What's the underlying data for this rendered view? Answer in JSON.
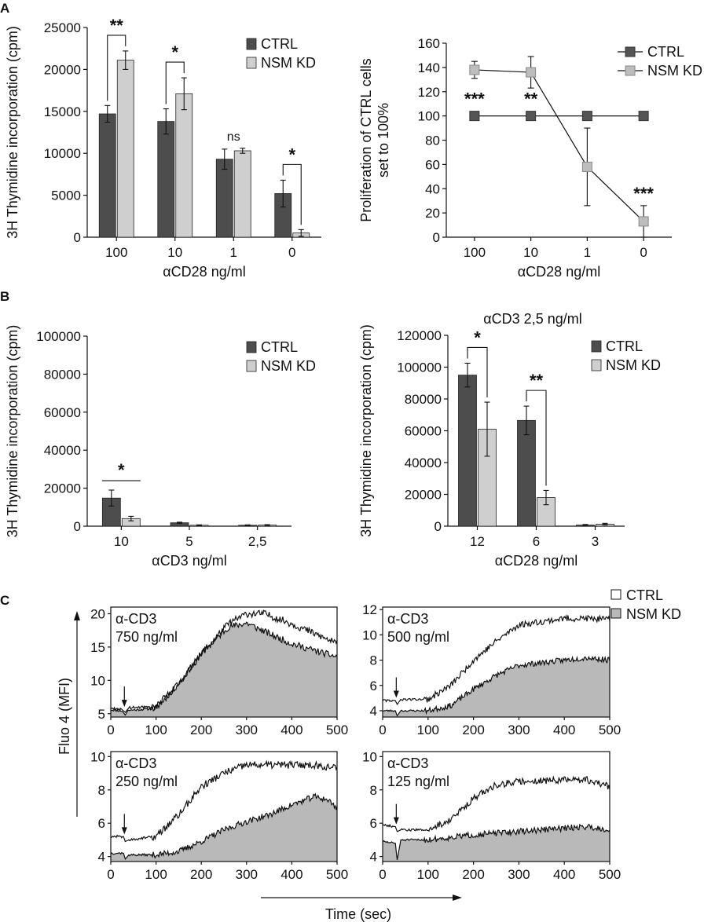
{
  "panel_labels": {
    "a": "A",
    "b": "B",
    "c": "C"
  },
  "colors": {
    "ctrl_bar": "#4d4d4d",
    "nsm_bar": "#cfcfcf",
    "ctrl_marker": "#555555",
    "nsm_marker": "#bdbdbd",
    "nsm_fill": "#b9b9b9",
    "trace": "#111111"
  },
  "chart_data": [
    {
      "id": "A1",
      "type": "bar",
      "categories": [
        "100",
        "10",
        "1",
        "0"
      ],
      "series": [
        {
          "name": "CTRL",
          "values": [
            14700,
            13800,
            9300,
            5200
          ],
          "errors": [
            1000,
            1500,
            1200,
            1600
          ]
        },
        {
          "name": "NSM KD",
          "values": [
            21100,
            17100,
            10300,
            500
          ],
          "errors": [
            1100,
            1900,
            300,
            400
          ]
        }
      ],
      "xlabel": "αCD28 ng/ml",
      "ylabel": "3H Thymidine incorporation (cpm)",
      "ylim": [
        0,
        25000
      ],
      "yticks": [
        "0",
        "5000",
        "10000",
        "15000",
        "20000",
        "25000"
      ],
      "legend": [
        "CTRL",
        "NSM KD"
      ],
      "annotations": [
        {
          "category": "100",
          "text": "**",
          "type": "bracket"
        },
        {
          "category": "10",
          "text": "*",
          "type": "bracket"
        },
        {
          "category": "1",
          "text": "ns",
          "type": "label"
        },
        {
          "category": "0",
          "text": "*",
          "type": "bracket"
        }
      ]
    },
    {
      "id": "A2",
      "type": "line",
      "categories": [
        "100",
        "10",
        "1",
        "0"
      ],
      "series": [
        {
          "name": "CTRL",
          "values": [
            100,
            100,
            100,
            100
          ],
          "errors": [
            0,
            0,
            0,
            0
          ]
        },
        {
          "name": "NSM KD",
          "values": [
            138,
            136,
            58,
            13
          ],
          "errors": [
            7,
            13,
            32,
            13
          ]
        }
      ],
      "xlabel": "αCD28 ng/ml",
      "ylabel": "Proliferation of CTRL cells set to 100%",
      "ylabel_lines": [
        "Proliferation of CTRL cells",
        "set to 100%"
      ],
      "ylim": [
        0,
        160
      ],
      "yticks": [
        "0",
        "20",
        "40",
        "60",
        "80",
        "100",
        "120",
        "140",
        "160"
      ],
      "legend": [
        "CTRL",
        "NSM KD"
      ],
      "annotations": [
        {
          "category": "100",
          "text": "***"
        },
        {
          "category": "10",
          "text": "**"
        },
        {
          "category": "0",
          "text": "***"
        }
      ]
    },
    {
      "id": "B1",
      "type": "bar",
      "categories": [
        "10",
        "5",
        "2,5"
      ],
      "series": [
        {
          "name": "CTRL",
          "values": [
            14800,
            1800,
            500
          ],
          "errors": [
            4200,
            300,
            200
          ]
        },
        {
          "name": "NSM KD",
          "values": [
            4000,
            500,
            600
          ],
          "errors": [
            1200,
            200,
            200
          ]
        }
      ],
      "xlabel": "αCD3 ng/ml",
      "ylabel": "3H Thymidine incorporation (cpm)",
      "ylim": [
        0,
        100000
      ],
      "yticks": [
        "0",
        "20000",
        "40000",
        "60000",
        "80000",
        "100000"
      ],
      "legend": [
        "CTRL",
        "NSM KD"
      ],
      "annotations": [
        {
          "category": "10",
          "text": "*",
          "type": "line"
        }
      ]
    },
    {
      "id": "B2",
      "type": "bar",
      "title": "αCD3 2,5 ng/ml",
      "categories": [
        "12",
        "6",
        "3"
      ],
      "series": [
        {
          "name": "CTRL",
          "values": [
            95000,
            66500,
            700
          ],
          "errors": [
            7500,
            9000,
            400
          ]
        },
        {
          "name": "NSM KD",
          "values": [
            61000,
            18000,
            1300
          ],
          "errors": [
            17000,
            4500,
            500
          ]
        }
      ],
      "xlabel": "αCD28 ng/ml",
      "ylabel": "3H Thymidine incorporation (cpm)",
      "ylim": [
        0,
        120000
      ],
      "yticks": [
        "0",
        "20000",
        "40000",
        "60000",
        "80000",
        "100000",
        "120000"
      ],
      "legend": [
        "CTRL",
        "NSM KD"
      ],
      "annotations": [
        {
          "category": "12",
          "text": "*",
          "type": "bracket"
        },
        {
          "category": "6",
          "text": "**",
          "type": "bracket"
        }
      ]
    },
    {
      "id": "C1",
      "type": "area",
      "label_lines": [
        "α-CD3",
        "750 ng/ml"
      ],
      "xlim": [
        0,
        500
      ],
      "ylim": [
        4.5,
        21
      ],
      "xticks": [
        "0",
        "100",
        "200",
        "300",
        "400",
        "500"
      ],
      "yticks": [
        "5",
        "10",
        "15",
        "20"
      ],
      "stimulus_time": 30,
      "series": [
        {
          "name": "CTRL",
          "fill": false,
          "knots": [
            [
              0,
              5.8
            ],
            [
              25,
              5.6
            ],
            [
              32,
              5.2
            ],
            [
              40,
              5.9
            ],
            [
              100,
              6.0
            ],
            [
              150,
              9.5
            ],
            [
              200,
              14.0
            ],
            [
              260,
              18.5
            ],
            [
              300,
              20.0
            ],
            [
              340,
              20.0
            ],
            [
              400,
              18.5
            ],
            [
              450,
              17.0
            ],
            [
              500,
              15.5
            ]
          ],
          "noise": 0.55
        },
        {
          "name": "NSM KD",
          "fill": true,
          "knots": [
            [
              0,
              5.6
            ],
            [
              25,
              5.4
            ],
            [
              32,
              4.8
            ],
            [
              38,
              5.5
            ],
            [
              100,
              5.8
            ],
            [
              150,
              9.5
            ],
            [
              200,
              14.0
            ],
            [
              260,
              18.0
            ],
            [
              300,
              18.6
            ],
            [
              350,
              17.0
            ],
            [
              400,
              15.5
            ],
            [
              450,
              14.5
            ],
            [
              500,
              13.5
            ]
          ],
          "noise": 0.5
        }
      ]
    },
    {
      "id": "C2",
      "type": "area",
      "label_lines": [
        "α-CD3",
        "500 ng/ml"
      ],
      "xlim": [
        0,
        500
      ],
      "ylim": [
        3.5,
        12.2
      ],
      "xticks": [
        "0",
        "100",
        "200",
        "300",
        "400",
        "500"
      ],
      "yticks": [
        "4",
        "6",
        "8",
        "10",
        "12"
      ],
      "stimulus_time": 30,
      "series": [
        {
          "name": "CTRL",
          "fill": false,
          "knots": [
            [
              0,
              4.8
            ],
            [
              28,
              4.8
            ],
            [
              32,
              4.5
            ],
            [
              40,
              4.9
            ],
            [
              100,
              4.9
            ],
            [
              150,
              6.0
            ],
            [
              200,
              8.0
            ],
            [
              250,
              9.5
            ],
            [
              300,
              10.8
            ],
            [
              400,
              11.3
            ],
            [
              450,
              11.3
            ],
            [
              500,
              11.2
            ]
          ],
          "noise": 0.25
        },
        {
          "name": "NSM KD",
          "fill": true,
          "knots": [
            [
              0,
              4.0
            ],
            [
              28,
              4.0
            ],
            [
              32,
              3.6
            ],
            [
              40,
              4.0
            ],
            [
              100,
              4.0
            ],
            [
              150,
              4.4
            ],
            [
              200,
              5.7
            ],
            [
              250,
              6.8
            ],
            [
              300,
              7.6
            ],
            [
              400,
              8.0
            ],
            [
              450,
              8.2
            ],
            [
              500,
              8.0
            ]
          ],
          "noise": 0.22
        }
      ]
    },
    {
      "id": "C3",
      "type": "area",
      "label_lines": [
        "α-CD3",
        "250 ng/ml"
      ],
      "xlim": [
        0,
        500
      ],
      "ylim": [
        3.7,
        10.3
      ],
      "xticks": [
        "0",
        "100",
        "200",
        "300",
        "400",
        "500"
      ],
      "yticks": [
        "4",
        "6",
        "8",
        "10"
      ],
      "stimulus_time": 30,
      "series": [
        {
          "name": "CTRL",
          "fill": false,
          "knots": [
            [
              0,
              5.2
            ],
            [
              28,
              5.2
            ],
            [
              32,
              4.9
            ],
            [
              40,
              5.0
            ],
            [
              100,
              5.2
            ],
            [
              150,
              6.5
            ],
            [
              200,
              8.2
            ],
            [
              250,
              9.0
            ],
            [
              300,
              9.5
            ],
            [
              400,
              9.5
            ],
            [
              450,
              9.5
            ],
            [
              500,
              9.3
            ]
          ],
          "noise": 0.22
        },
        {
          "name": "NSM KD",
          "fill": true,
          "knots": [
            [
              0,
              4.2
            ],
            [
              28,
              4.2
            ],
            [
              32,
              3.85
            ],
            [
              40,
              4.1
            ],
            [
              100,
              4.1
            ],
            [
              150,
              4.3
            ],
            [
              200,
              4.9
            ],
            [
              250,
              5.6
            ],
            [
              300,
              6.1
            ],
            [
              350,
              6.5
            ],
            [
              400,
              7.1
            ],
            [
              450,
              7.6
            ],
            [
              480,
              7.4
            ],
            [
              500,
              6.9
            ]
          ],
          "noise": 0.18
        }
      ]
    },
    {
      "id": "C4",
      "type": "area",
      "label_lines": [
        "α-CD3",
        "125 ng/ml"
      ],
      "xlim": [
        0,
        500
      ],
      "ylim": [
        3.7,
        10.3
      ],
      "xticks": [
        "0",
        "100",
        "200",
        "300",
        "400",
        "500"
      ],
      "yticks": [
        "4",
        "6",
        "8",
        "10"
      ],
      "stimulus_time": 30,
      "series": [
        {
          "name": "CTRL",
          "fill": false,
          "knots": [
            [
              0,
              5.9
            ],
            [
              28,
              5.8
            ],
            [
              32,
              5.5
            ],
            [
              40,
              5.6
            ],
            [
              100,
              5.6
            ],
            [
              150,
              6.2
            ],
            [
              200,
              7.5
            ],
            [
              250,
              8.3
            ],
            [
              300,
              8.5
            ],
            [
              400,
              8.6
            ],
            [
              450,
              8.6
            ],
            [
              500,
              8.2
            ]
          ],
          "noise": 0.2
        },
        {
          "name": "NSM KD",
          "fill": true,
          "knots": [
            [
              0,
              4.9
            ],
            [
              28,
              4.8
            ],
            [
              32,
              3.8
            ],
            [
              40,
              5.0
            ],
            [
              100,
              5.0
            ],
            [
              200,
              5.3
            ],
            [
              300,
              5.5
            ],
            [
              400,
              5.7
            ],
            [
              450,
              5.8
            ],
            [
              500,
              5.6
            ]
          ],
          "noise": 0.18
        }
      ]
    }
  ],
  "panel_c": {
    "legend": [
      "CTRL",
      "NSM KD"
    ],
    "ylabel": "Fluo 4 (MFI)",
    "xlabel": "Time (sec)"
  }
}
